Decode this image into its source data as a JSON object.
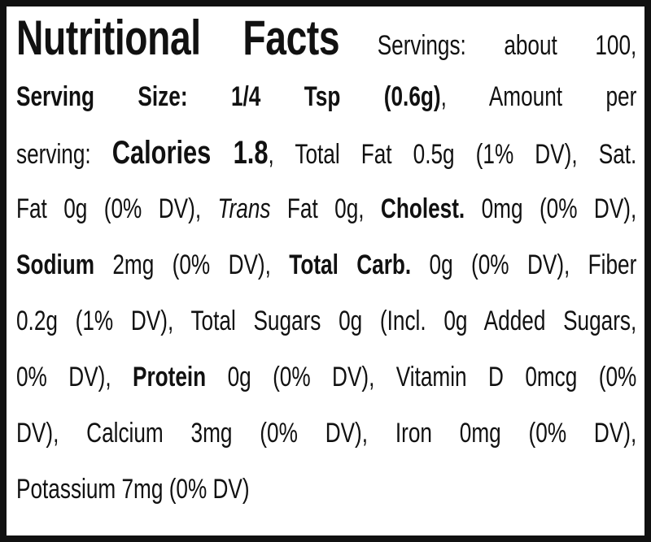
{
  "title": "Nutritional Facts",
  "lines": [
    [
      "Servings: about 100,"
    ],
    [
      "Serving Size: 1/4 Tsp (0.6g)",
      ", Amount per"
    ],
    [
      "serving: ",
      "Calories 1.8",
      ", Total Fat 0.5g (1% DV), Sat."
    ],
    [
      "Fat 0g (0% DV), ",
      "Trans",
      " Fat 0g, ",
      "Cholest.",
      " 0mg (0% DV),"
    ],
    [
      "Sodium",
      " 2mg (0% DV), ",
      "Total Carb.",
      " 0g (0% DV), Fiber"
    ],
    [
      "0.2g (1% DV), Total Sugars 0g (Incl. 0g Added Sugars,"
    ],
    [
      "0% DV), ",
      "Protein",
      " 0g (0% DV), Vitamin D 0mcg (0%"
    ],
    [
      "DV), Calcium 3mg (0% DV), Iron 0mg (0% DV),"
    ],
    [
      "Potassium 7mg (0% DV)"
    ]
  ]
}
